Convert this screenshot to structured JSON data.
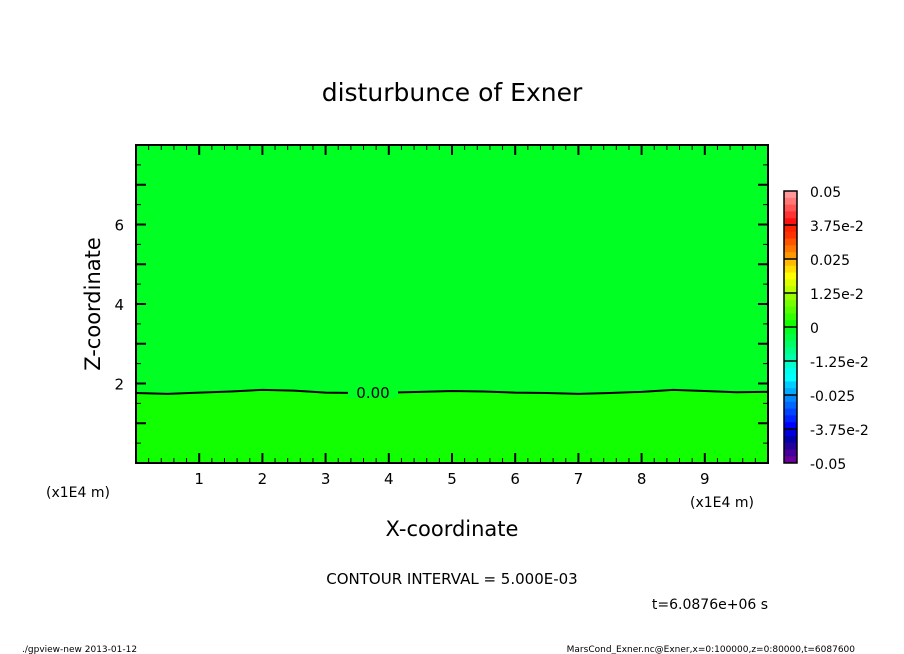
{
  "chart_data": {
    "type": "heatmap",
    "title": "disturbunce of Exner",
    "xlabel": "X-coordinate",
    "ylabel": "Z-coordinate",
    "x_unit_label": "(x1E4 m)",
    "y_unit_label": "(x1E4 m)",
    "xlim": [
      0,
      10
    ],
    "ylim": [
      0,
      8
    ],
    "x_ticks": [
      1,
      2,
      3,
      4,
      5,
      6,
      7,
      8,
      9
    ],
    "y_ticks": [
      2,
      4,
      6
    ],
    "contour": {
      "level_label": "0.00",
      "x": [
        0,
        0.5,
        1,
        1.5,
        2,
        2.5,
        3,
        3.5,
        4,
        4.5,
        5,
        5.5,
        6,
        6.5,
        7,
        7.5,
        8,
        8.5,
        9,
        9.5,
        10
      ],
      "z": [
        1.76,
        1.74,
        1.77,
        1.8,
        1.84,
        1.82,
        1.77,
        1.76,
        1.77,
        1.79,
        1.81,
        1.8,
        1.77,
        1.76,
        1.74,
        1.76,
        1.79,
        1.84,
        1.81,
        1.78,
        1.79
      ]
    },
    "fill_colors": {
      "above_contour": "#00ff22",
      "below_contour": "#11ff00"
    },
    "colorbar": {
      "range": [
        -0.05,
        0.05
      ],
      "tick_labels": [
        "0.05",
        "3.75e-2",
        "0.025",
        "1.25e-2",
        "0",
        "-1.25e-2",
        "-0.025",
        "-3.75e-2",
        "-0.05"
      ],
      "colors_top_to_bottom": [
        "#ff9999",
        "#ff7777",
        "#ff5555",
        "#ff3333",
        "#ff1111",
        "#ff2200",
        "#ff3300",
        "#ff5500",
        "#ff7700",
        "#ff9900",
        "#ffbb00",
        "#ffdd00",
        "#ffff00",
        "#ddff00",
        "#bbff00",
        "#99ff00",
        "#77ff00",
        "#55ff00",
        "#33ff00",
        "#11ff00",
        "#00ff22",
        "#00ff44",
        "#00ff66",
        "#00ff88",
        "#00ffaa",
        "#00ffcc",
        "#00ffee",
        "#00ffff",
        "#00ccff",
        "#00aaff",
        "#0088ff",
        "#0066ff",
        "#0044ff",
        "#0022ff",
        "#0000ff",
        "#0000dd",
        "#0000aa",
        "#220099",
        "#440099",
        "#660099"
      ]
    },
    "contour_interval": "CONTOUR INTERVAL = 5.000E-03",
    "time_label": "t=6.0876e+06 s"
  },
  "footer": {
    "left": "./gpview-new  2013-01-12",
    "right": "MarsCond_Exner.nc@Exner,x=0:100000,z=0:80000,t=6087600"
  }
}
